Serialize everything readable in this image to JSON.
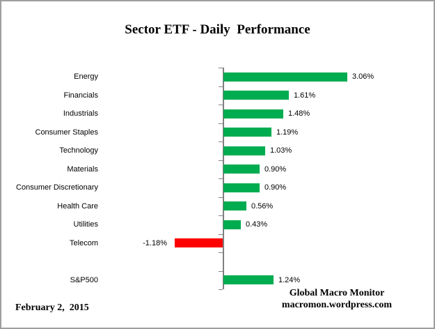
{
  "title": "Sector ETF - Daily  Performance",
  "footer": {
    "date": "February 2,  2015",
    "source_line1": "Global Macro Monitor",
    "source_line2": "macromon.wordpress.com"
  },
  "chart_data": {
    "type": "bar",
    "orientation": "horizontal",
    "title": "Sector ETF - Daily  Performance",
    "categories": [
      "Energy",
      "Financials",
      "Industrials",
      "Consumer Staples",
      "Technology",
      "Materials",
      "Consumer Discretionary",
      "Health Care",
      "Utilities",
      "Telecom",
      "S&P500"
    ],
    "values": [
      3.06,
      1.61,
      1.48,
      1.19,
      1.03,
      0.9,
      0.9,
      0.56,
      0.43,
      -1.18,
      1.24
    ],
    "value_labels": [
      "3.06%",
      "1.61%",
      "1.48%",
      "1.19%",
      "1.03%",
      "0.90%",
      "0.90%",
      "0.56%",
      "0.43%",
      "-1.18%",
      "1.24%"
    ],
    "unit": "%",
    "positive_color": "#00AC50",
    "negative_color": "#FF0000",
    "axis_color": "#808080",
    "text_color": "#000000",
    "layout": {
      "blank_row_before_index": 10,
      "gridlines": false,
      "legend": false,
      "value_axis_hidden": true,
      "value_labels_shown": true
    }
  }
}
